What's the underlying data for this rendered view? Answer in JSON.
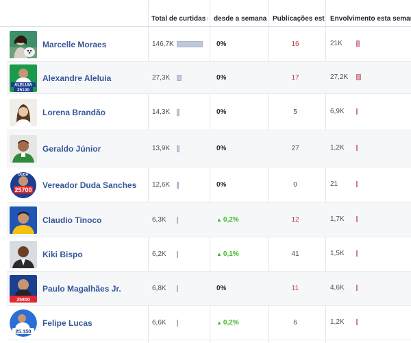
{
  "columns": {
    "total_likes": "Total de curtidas na",
    "since_week": "desde a semana p",
    "posts_week": "Publicações esta s",
    "engagement_week": "Envolvimento esta semana"
  },
  "colors": {
    "name_link": "#365899",
    "positive": "#42b72a",
    "posts_highlight": "#c23c47",
    "likes_bar": "#bfc9db",
    "engagement_bar": "#e3a0ad"
  },
  "pages": [
    {
      "name": "Marcelle Moraes",
      "likes": "146,7K",
      "likes_share": 1.0,
      "change": "0%",
      "change_up": false,
      "posts": "16",
      "posts_highlight": true,
      "engagement": "21K",
      "engagement_share": 0.77,
      "avatar": "photo-woman-with-dog"
    },
    {
      "name": "Alexandre Aleluia",
      "likes": "27,3K",
      "likes_share": 0.19,
      "change": "0%",
      "change_up": false,
      "posts": "17",
      "posts_highlight": true,
      "engagement": "27,2K",
      "engagement_share": 1.0,
      "avatar": "campaign-badge-aleluia-25100"
    },
    {
      "name": "Lorena Brandão",
      "likes": "14,3K",
      "likes_share": 0.1,
      "change": "0%",
      "change_up": false,
      "posts": "5",
      "posts_highlight": false,
      "engagement": "6,9K",
      "engagement_share": 0.25,
      "avatar": "photo-woman"
    },
    {
      "name": "Geraldo Júnior",
      "likes": "13,9K",
      "likes_share": 0.1,
      "change": "0%",
      "change_up": false,
      "posts": "27",
      "posts_highlight": false,
      "engagement": "1,2K",
      "engagement_share": 0.05,
      "avatar": "photo-man-green"
    },
    {
      "name": "Vereador Duda Sanches",
      "likes": "12,6K",
      "likes_share": 0.09,
      "change": "0%",
      "change_up": false,
      "posts": "0",
      "posts_highlight": false,
      "engagement": "21",
      "engagement_share": 0.01,
      "avatar": "campaign-badge-duda-25700"
    },
    {
      "name": "Claudio Tinoco",
      "likes": "6,3K",
      "likes_share": 0.04,
      "change": "0,2%",
      "change_up": true,
      "posts": "12",
      "posts_highlight": true,
      "engagement": "1,7K",
      "engagement_share": 0.06,
      "avatar": "photo-man-blue"
    },
    {
      "name": "Kiki Bispo",
      "likes": "6,2K",
      "likes_share": 0.04,
      "change": "0,1%",
      "change_up": true,
      "posts": "41",
      "posts_highlight": false,
      "engagement": "1,5K",
      "engagement_share": 0.06,
      "avatar": "photo-man-suit"
    },
    {
      "name": "Paulo Magalhães Jr.",
      "likes": "6,8K",
      "likes_share": 0.05,
      "change": "0%",
      "change_up": false,
      "posts": "11",
      "posts_highlight": true,
      "engagement": "4,6K",
      "engagement_share": 0.17,
      "avatar": "campaign-badge-25800"
    },
    {
      "name": "Felipe Lucas",
      "likes": "6,6K",
      "likes_share": 0.05,
      "change": "0,2%",
      "change_up": true,
      "posts": "6",
      "posts_highlight": false,
      "engagement": "1,2K",
      "engagement_share": 0.05,
      "avatar": "campaign-badge-25150"
    }
  ]
}
